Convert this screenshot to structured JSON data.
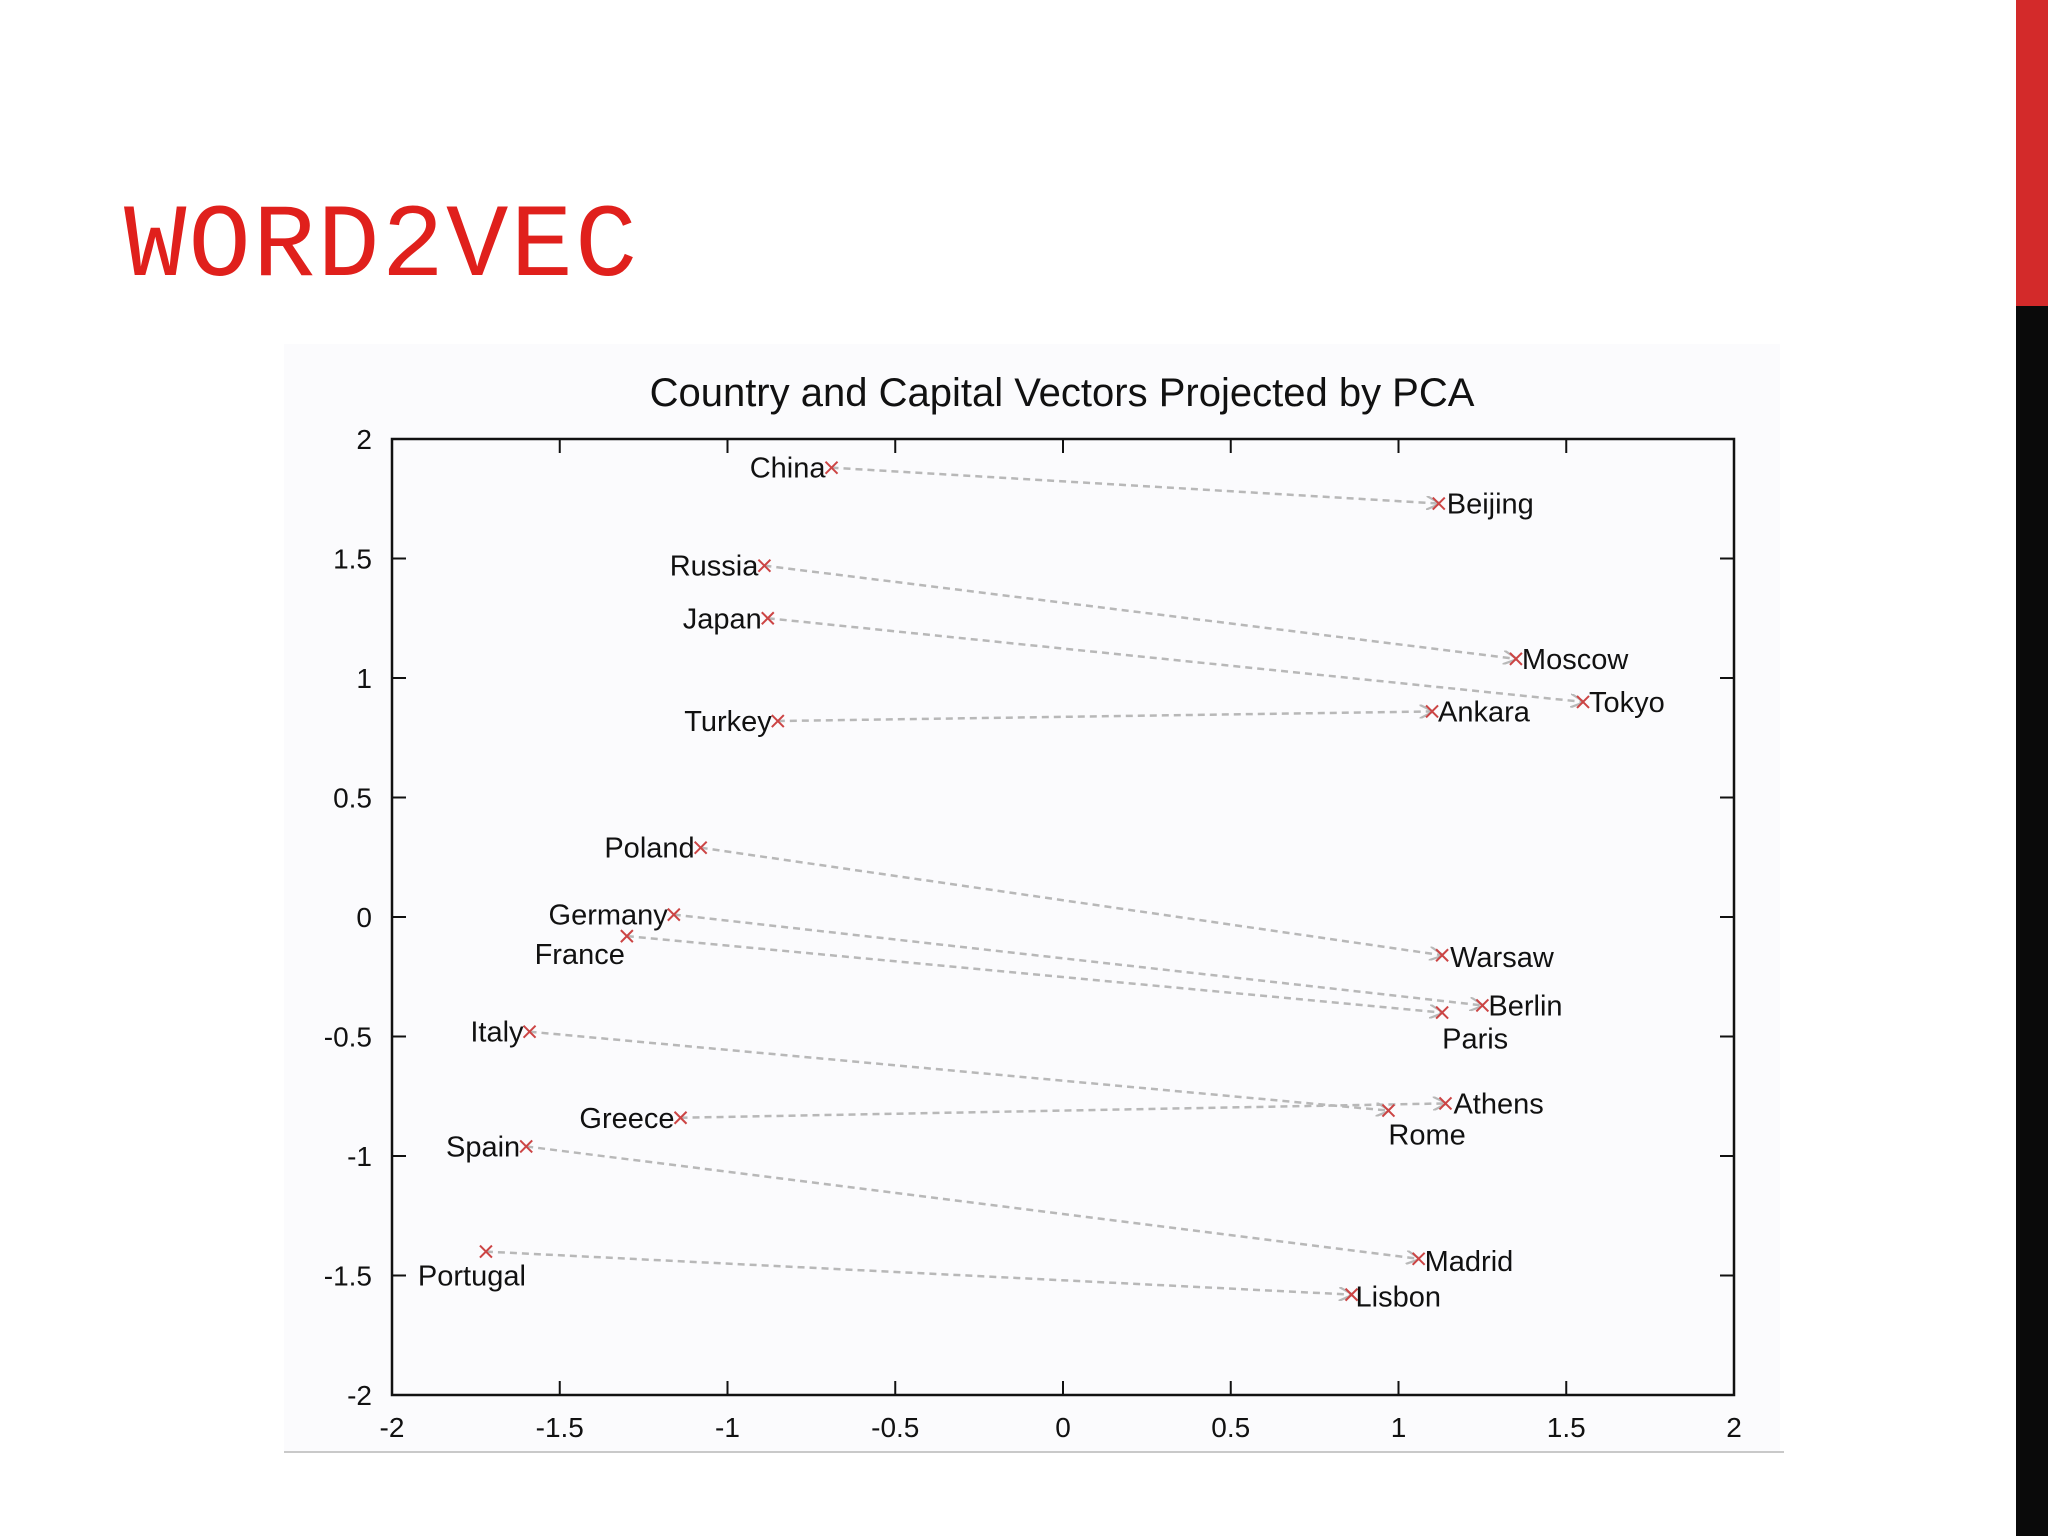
{
  "slide": {
    "title": "WORD2VEC",
    "title_color": "#e0201c",
    "accent_red": "#d32a2a",
    "accent_black": "#0a0a0a"
  },
  "chart_data": {
    "type": "scatter",
    "title": "Country and Capital Vectors Projected by PCA",
    "xlabel": "",
    "ylabel": "",
    "xlim": [
      -2,
      2
    ],
    "ylim": [
      -2,
      2
    ],
    "xticks": [
      "-2",
      "-1.5",
      "-1",
      "-0.5",
      "0",
      "0.5",
      "1",
      "1.5",
      "2"
    ],
    "yticks": [
      "2",
      "1.5",
      "1",
      "0.5",
      "0",
      "-0.5",
      "-1",
      "-1.5",
      "-2"
    ],
    "grid": false,
    "marker_color": "#cc4444",
    "arrow_color": "#b8b8b8",
    "pairs": [
      {
        "country": "China",
        "cx": -0.69,
        "cy": 1.88,
        "capital": "Beijing",
        "kx": 1.12,
        "ky": 1.73
      },
      {
        "country": "Russia",
        "cx": -0.89,
        "cy": 1.47,
        "capital": "Moscow",
        "kx": 1.35,
        "ky": 1.08
      },
      {
        "country": "Japan",
        "cx": -0.88,
        "cy": 1.25,
        "capital": "Tokyo",
        "kx": 1.55,
        "ky": 0.9
      },
      {
        "country": "Turkey",
        "cx": -0.85,
        "cy": 0.82,
        "capital": "Ankara",
        "kx": 1.1,
        "ky": 0.86
      },
      {
        "country": "Poland",
        "cx": -1.08,
        "cy": 0.29,
        "capital": "Warsaw",
        "kx": 1.13,
        "ky": -0.16
      },
      {
        "country": "Germany",
        "cx": -1.16,
        "cy": 0.01,
        "capital": "Berlin",
        "kx": 1.25,
        "ky": -0.37
      },
      {
        "country": "France",
        "cx": -1.3,
        "cy": -0.08,
        "capital": "Paris",
        "kx": 1.13,
        "ky": -0.4
      },
      {
        "country": "Italy",
        "cx": -1.59,
        "cy": -0.48,
        "capital": "Rome",
        "kx": 0.97,
        "ky": -0.81
      },
      {
        "country": "Greece",
        "cx": -1.14,
        "cy": -0.84,
        "capital": "Athens",
        "kx": 1.14,
        "ky": -0.78
      },
      {
        "country": "Spain",
        "cx": -1.6,
        "cy": -0.96,
        "capital": "Madrid",
        "kx": 1.06,
        "ky": -1.43
      },
      {
        "country": "Portugal",
        "cx": -1.72,
        "cy": -1.4,
        "capital": "Lisbon",
        "kx": 0.86,
        "ky": -1.58
      }
    ]
  }
}
